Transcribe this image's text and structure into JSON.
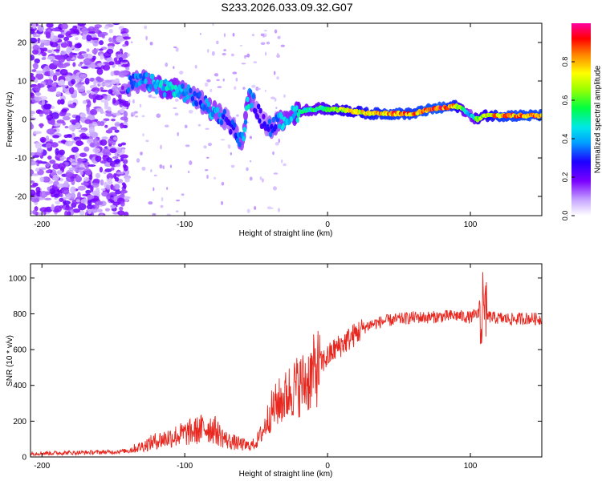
{
  "title": "S233.2026.033.09.32.G07",
  "colors": {
    "snr_line": "#e8271f",
    "scatter_fill": "#8a3cf0",
    "ridge_low": "#2a00ff",
    "ridge_mid": "#00e0c0",
    "ridge_high": "#ff1a1a"
  },
  "chart_data": [
    {
      "type": "heatmap",
      "title": "",
      "xlabel": "Height of straight line (km)",
      "ylabel": "Frequency (Hz)",
      "xlim": [
        -208,
        150
      ],
      "ylim": [
        -25,
        25
      ],
      "xticks": [
        -200,
        -100,
        0,
        100
      ],
      "xtick_labels": [
        "-200",
        "-100",
        "0",
        "100"
      ],
      "yticks": [
        -20,
        -10,
        0,
        10,
        20
      ],
      "ytick_labels": [
        "-20",
        "-10",
        "0",
        "10",
        "20"
      ],
      "colorbar": {
        "label": "Normalized spectral amplitude",
        "range": [
          0,
          1
        ],
        "ticks": [
          0.0,
          0.2,
          0.4,
          0.6,
          0.8
        ],
        "tick_labels": [
          "0.0",
          "0.2",
          "0.4",
          "0.6",
          "0.8"
        ]
      },
      "ridge": {
        "x": [
          -140,
          -130,
          -120,
          -110,
          -100,
          -90,
          -80,
          -70,
          -60,
          -55,
          -50,
          -45,
          -40,
          -35,
          -30,
          -25,
          -20,
          -15,
          -10,
          -5,
          0,
          10,
          20,
          30,
          40,
          50,
          60,
          70,
          80,
          90,
          95,
          100,
          105,
          110,
          120,
          130,
          140,
          150
        ],
        "y": [
          9,
          10,
          9,
          8,
          7,
          5,
          2,
          0,
          -6,
          6,
          3,
          -1,
          -2,
          -1,
          0,
          1,
          2,
          2.5,
          2.5,
          3,
          2.5,
          2.5,
          2,
          1.5,
          1.5,
          1.5,
          1.5,
          2.5,
          3,
          3.5,
          2.5,
          1,
          0,
          1,
          1,
          1,
          1,
          1
        ],
        "amplitude": [
          0.35,
          0.4,
          0.45,
          0.5,
          0.4,
          0.35,
          0.45,
          0.3,
          0.4,
          0.5,
          0.3,
          0.25,
          0.35,
          0.4,
          0.45,
          0.45,
          0.55,
          0.55,
          0.6,
          0.6,
          0.7,
          0.75,
          0.8,
          0.85,
          0.9,
          0.92,
          0.9,
          0.95,
          0.95,
          0.85,
          0.6,
          0.4,
          0.7,
          0.75,
          0.9,
          0.92,
          0.93,
          0.93
        ]
      }
    },
    {
      "type": "line",
      "title": "",
      "xlabel": "Height of straight line (km)",
      "ylabel": "SNR (10 * v/v)",
      "xlim": [
        -208,
        150
      ],
      "ylim": [
        0,
        1080
      ],
      "xticks": [
        -200,
        -100,
        0,
        100
      ],
      "xtick_labels": [
        "-200",
        "-100",
        "0",
        "100"
      ],
      "yticks": [
        0,
        200,
        400,
        600,
        800,
        1000
      ],
      "ytick_labels": [
        "0",
        "200",
        "400",
        "600",
        "800",
        "1000"
      ],
      "series": [
        {
          "name": "SNR",
          "x": [
            -208,
            -190,
            -170,
            -150,
            -140,
            -130,
            -120,
            -110,
            -100,
            -90,
            -85,
            -80,
            -75,
            -70,
            -65,
            -60,
            -55,
            -50,
            -45,
            -40,
            -35,
            -30,
            -25,
            -20,
            -15,
            -10,
            -5,
            0,
            5,
            10,
            15,
            20,
            25,
            30,
            35,
            40,
            50,
            60,
            70,
            80,
            90,
            100,
            105,
            108,
            110,
            115,
            120,
            130,
            140,
            150
          ],
          "y": [
            20,
            22,
            25,
            28,
            35,
            60,
            90,
            110,
            130,
            150,
            165,
            160,
            120,
            90,
            80,
            70,
            60,
            80,
            150,
            250,
            300,
            330,
            380,
            400,
            420,
            470,
            520,
            560,
            600,
            630,
            660,
            690,
            720,
            740,
            750,
            760,
            770,
            780,
            780,
            785,
            790,
            780,
            800,
            780,
            790,
            780,
            775,
            770,
            775,
            770
          ]
        }
      ]
    }
  ]
}
